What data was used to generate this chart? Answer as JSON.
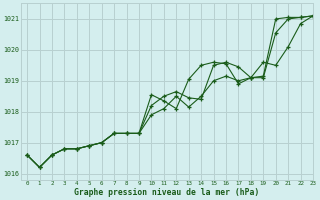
{
  "title": "Graphe pression niveau de la mer (hPa)",
  "bg_color": "#d4eeee",
  "grid_color": "#b8d0d0",
  "line_color": "#1a5c1a",
  "xlim": [
    -0.5,
    23
  ],
  "ylim": [
    1015.8,
    1021.5
  ],
  "yticks": [
    1016,
    1017,
    1018,
    1019,
    1020,
    1021
  ],
  "xticks": [
    0,
    1,
    2,
    3,
    4,
    5,
    6,
    7,
    8,
    9,
    10,
    11,
    12,
    13,
    14,
    15,
    16,
    17,
    18,
    19,
    20,
    21,
    22,
    23
  ],
  "series": [
    [
      1016.6,
      1016.2,
      1016.6,
      1016.8,
      1016.8,
      1016.9,
      1017.0,
      1017.3,
      1017.3,
      1017.3,
      1017.9,
      1018.1,
      1018.5,
      1018.15,
      1018.5,
      1019.0,
      1019.15,
      1019.0,
      1019.1,
      1019.1,
      1020.55,
      1021.0,
      1021.05,
      1021.1
    ],
    [
      1016.6,
      1016.2,
      1016.6,
      1016.8,
      1016.8,
      1016.9,
      1017.0,
      1017.3,
      1017.3,
      1017.3,
      1018.2,
      1018.5,
      1018.65,
      1018.45,
      1018.4,
      1019.5,
      1019.6,
      1019.45,
      1019.1,
      1019.6,
      1019.5,
      1020.1,
      1020.85,
      1021.1
    ],
    [
      1016.6,
      1016.2,
      1016.6,
      1016.8,
      1016.8,
      1016.9,
      1017.0,
      1017.3,
      1017.3,
      1017.3,
      1018.55,
      1018.35,
      1018.1,
      1019.05,
      1019.5,
      1019.6,
      1019.55,
      1018.9,
      1019.1,
      1019.15,
      1021.0,
      1021.05,
      1021.05,
      1021.1
    ]
  ]
}
